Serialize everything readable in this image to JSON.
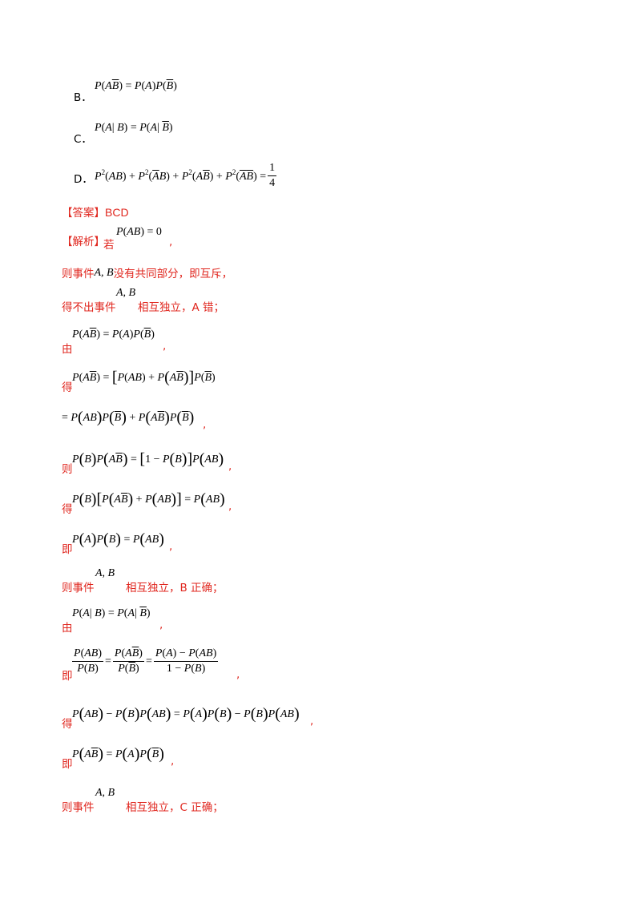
{
  "options": {
    "B": {
      "label": "B．",
      "formula": "P(AB̄) = P(A)P(B̄)"
    },
    "C": {
      "label": "C．",
      "formula": "P(A| B) = P(A| B̄)"
    },
    "D": {
      "label": "D．",
      "formula": "P²(AB) + P²(ĀB) + P²(AB̄) + P²(ĀB̄) = 1/4"
    }
  },
  "answer": {
    "label": "【答案】",
    "value": "BCD"
  },
  "analysis": {
    "label": "【解析】",
    "ruo": "若",
    "line1_formula": "P(AB) = 0",
    "line2_prefix": "则事件",
    "line2_vars": "A, B",
    "line2_suffix": "没有共同部分，即互斥，",
    "line3_prefix": "得不出事件",
    "line3_vars": "A, B",
    "line3_suffix": "相互独立，A 错；",
    "you": "由",
    "de": "得",
    "ze": "则",
    "ji": "即",
    "line8_prefix": "则事件",
    "line8_vars": "A, B",
    "line8_suffix": "相互独立，B 正确；",
    "line13_prefix": "则事件",
    "line13_vars": "A, B",
    "line13_suffix": "相互独立，C 正确；",
    "comma": ","
  }
}
